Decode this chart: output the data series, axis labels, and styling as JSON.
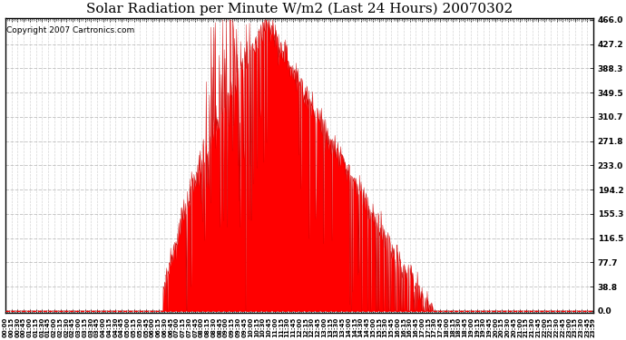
{
  "title": "Solar Radiation per Minute W/m2 (Last 24 Hours) 20070302",
  "copyright": "Copyright 2007 Cartronics.com",
  "yticks": [
    0.0,
    38.8,
    77.7,
    116.5,
    155.3,
    194.2,
    233.0,
    271.8,
    310.7,
    349.5,
    388.3,
    427.2,
    466.0
  ],
  "ymax": 466.0,
  "fill_color": "#ff0000",
  "line_color": "#cc0000",
  "background_color": "#ffffff",
  "grid_color": "#bbbbbb",
  "title_fontsize": 11,
  "copyright_fontsize": 6.5
}
